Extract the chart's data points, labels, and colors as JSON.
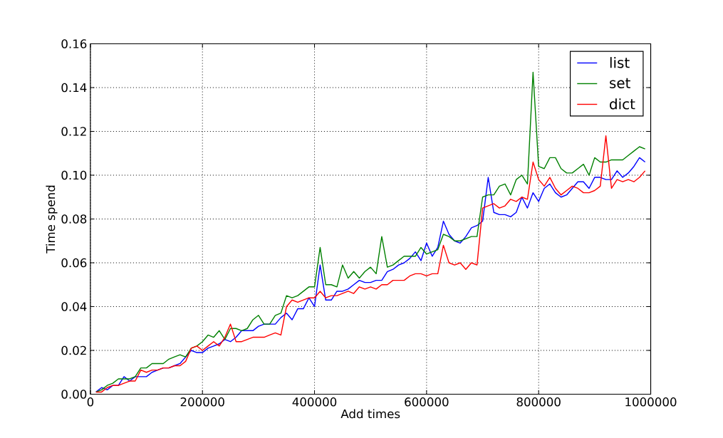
{
  "chart_data": {
    "type": "line",
    "xlabel": "Add times",
    "ylabel": "Time spend",
    "x": [
      10000,
      20000,
      30000,
      40000,
      50000,
      60000,
      70000,
      80000,
      90000,
      100000,
      110000,
      120000,
      130000,
      140000,
      150000,
      160000,
      170000,
      180000,
      190000,
      200000,
      210000,
      220000,
      230000,
      240000,
      250000,
      260000,
      270000,
      280000,
      290000,
      300000,
      310000,
      320000,
      330000,
      340000,
      350000,
      360000,
      370000,
      380000,
      390000,
      400000,
      410000,
      420000,
      430000,
      440000,
      450000,
      460000,
      470000,
      480000,
      490000,
      500000,
      510000,
      520000,
      530000,
      540000,
      550000,
      560000,
      570000,
      580000,
      590000,
      600000,
      610000,
      620000,
      630000,
      640000,
      650000,
      660000,
      670000,
      680000,
      690000,
      700000,
      710000,
      720000,
      730000,
      740000,
      750000,
      760000,
      770000,
      780000,
      790000,
      800000,
      810000,
      820000,
      830000,
      840000,
      850000,
      860000,
      870000,
      880000,
      890000,
      900000,
      910000,
      920000,
      930000,
      940000,
      950000,
      960000,
      970000,
      980000,
      990000
    ],
    "series": [
      {
        "name": "list",
        "color": "#0000ff",
        "values": [
          0.001,
          0.003,
          0.002,
          0.004,
          0.004,
          0.008,
          0.006,
          0.008,
          0.008,
          0.008,
          0.01,
          0.011,
          0.012,
          0.012,
          0.013,
          0.014,
          0.017,
          0.02,
          0.019,
          0.019,
          0.021,
          0.022,
          0.023,
          0.025,
          0.024,
          0.026,
          0.029,
          0.029,
          0.029,
          0.031,
          0.032,
          0.032,
          0.032,
          0.035,
          0.037,
          0.034,
          0.039,
          0.039,
          0.044,
          0.04,
          0.059,
          0.043,
          0.043,
          0.047,
          0.047,
          0.048,
          0.05,
          0.052,
          0.051,
          0.051,
          0.052,
          0.052,
          0.056,
          0.057,
          0.059,
          0.06,
          0.062,
          0.065,
          0.061,
          0.069,
          0.063,
          0.067,
          0.079,
          0.073,
          0.07,
          0.069,
          0.072,
          0.076,
          0.077,
          0.079,
          0.099,
          0.083,
          0.082,
          0.082,
          0.081,
          0.083,
          0.09,
          0.085,
          0.092,
          0.088,
          0.094,
          0.096,
          0.092,
          0.09,
          0.091,
          0.094,
          0.097,
          0.097,
          0.094,
          0.099,
          0.099,
          0.098,
          0.098,
          0.102,
          0.099,
          0.101,
          0.104,
          0.108,
          0.106
        ]
      },
      {
        "name": "set",
        "color": "#008000",
        "values": [
          0.001,
          0.002,
          0.004,
          0.005,
          0.007,
          0.007,
          0.007,
          0.008,
          0.012,
          0.012,
          0.014,
          0.014,
          0.014,
          0.016,
          0.017,
          0.018,
          0.017,
          0.021,
          0.022,
          0.024,
          0.027,
          0.026,
          0.029,
          0.025,
          0.03,
          0.03,
          0.029,
          0.03,
          0.034,
          0.036,
          0.032,
          0.032,
          0.036,
          0.037,
          0.045,
          0.044,
          0.045,
          0.047,
          0.049,
          0.049,
          0.067,
          0.05,
          0.05,
          0.049,
          0.059,
          0.053,
          0.056,
          0.053,
          0.056,
          0.058,
          0.055,
          0.072,
          0.058,
          0.059,
          0.061,
          0.063,
          0.063,
          0.063,
          0.067,
          0.064,
          0.065,
          0.066,
          0.073,
          0.072,
          0.07,
          0.07,
          0.071,
          0.072,
          0.072,
          0.09,
          0.091,
          0.091,
          0.095,
          0.096,
          0.091,
          0.098,
          0.1,
          0.096,
          0.147,
          0.104,
          0.103,
          0.108,
          0.108,
          0.103,
          0.101,
          0.101,
          0.103,
          0.105,
          0.1,
          0.108,
          0.106,
          0.106,
          0.107,
          0.107,
          0.107,
          0.109,
          0.111,
          0.113,
          0.112
        ]
      },
      {
        "name": "dict",
        "color": "#ff0000",
        "values": [
          0.001,
          0.001,
          0.003,
          0.004,
          0.004,
          0.005,
          0.006,
          0.006,
          0.011,
          0.01,
          0.011,
          0.011,
          0.012,
          0.012,
          0.013,
          0.013,
          0.015,
          0.021,
          0.022,
          0.02,
          0.022,
          0.024,
          0.022,
          0.026,
          0.032,
          0.024,
          0.024,
          0.025,
          0.026,
          0.026,
          0.026,
          0.027,
          0.028,
          0.027,
          0.04,
          0.043,
          0.042,
          0.043,
          0.044,
          0.044,
          0.047,
          0.044,
          0.045,
          0.045,
          0.046,
          0.047,
          0.046,
          0.049,
          0.048,
          0.049,
          0.048,
          0.05,
          0.05,
          0.052,
          0.052,
          0.052,
          0.054,
          0.055,
          0.055,
          0.054,
          0.055,
          0.055,
          0.068,
          0.06,
          0.059,
          0.06,
          0.057,
          0.06,
          0.059,
          0.085,
          0.086,
          0.087,
          0.085,
          0.086,
          0.089,
          0.088,
          0.09,
          0.089,
          0.106,
          0.098,
          0.095,
          0.099,
          0.094,
          0.091,
          0.093,
          0.095,
          0.094,
          0.092,
          0.092,
          0.093,
          0.095,
          0.118,
          0.094,
          0.098,
          0.097,
          0.098,
          0.097,
          0.099,
          0.102
        ]
      }
    ],
    "xlim": [
      0,
      1000000
    ],
    "ylim": [
      0,
      0.16
    ],
    "xticks": [
      0,
      200000,
      400000,
      600000,
      800000,
      1000000
    ],
    "yticks": [
      {
        "value": 0,
        "label": "0.00"
      },
      {
        "value": 0.02,
        "label": "0.02"
      },
      {
        "value": 0.04,
        "label": "0.04"
      },
      {
        "value": 0.06,
        "label": "0.06"
      },
      {
        "value": 0.08,
        "label": "0.08"
      },
      {
        "value": 0.1,
        "label": "0.10"
      },
      {
        "value": 0.12,
        "label": "0.12"
      },
      {
        "value": 0.14,
        "label": "0.14"
      },
      {
        "value": 0.16,
        "label": "0.16"
      }
    ],
    "grid": true,
    "legend": "top right"
  }
}
